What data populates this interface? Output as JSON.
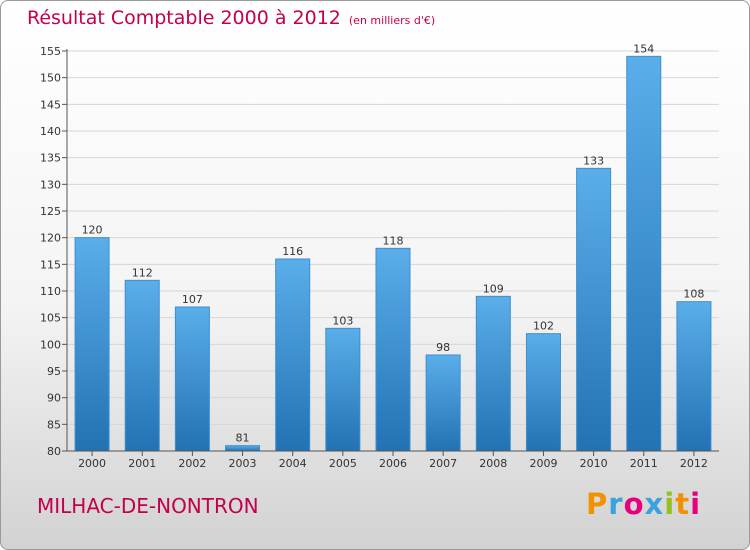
{
  "title": "Résultat Comptable 2000 à 2012",
  "unit_note": "(en milliers d'€)",
  "commune": "MILHAC-DE-NONTRON",
  "logo": {
    "text": "Proxiti",
    "letters": [
      "P",
      "r",
      "o",
      "x",
      "i",
      "t",
      "i"
    ],
    "colors": [
      "#f39200",
      "#3aa3dd",
      "#e6007e",
      "#3aa3dd",
      "#95c11f",
      "#f39200",
      "#e6007e"
    ]
  },
  "colors": {
    "accent": "#c4004e",
    "bar_top": "#5aaee9",
    "bar_bottom": "#2272b4"
  },
  "chart_data": {
    "type": "bar",
    "title": "Résultat Comptable 2000 à 2012",
    "subtitle": "(en milliers d'€)",
    "categories": [
      "2000",
      "2001",
      "2002",
      "2003",
      "2004",
      "2005",
      "2006",
      "2007",
      "2008",
      "2009",
      "2010",
      "2011",
      "2012"
    ],
    "values": [
      120,
      112,
      107,
      81,
      116,
      103,
      118,
      98,
      109,
      102,
      133,
      154,
      108
    ],
    "ylim": [
      80,
      155
    ],
    "yticks": [
      80,
      85,
      90,
      95,
      100,
      105,
      110,
      115,
      120,
      125,
      130,
      135,
      140,
      145,
      150,
      155
    ],
    "grid": true,
    "legend": "none"
  }
}
